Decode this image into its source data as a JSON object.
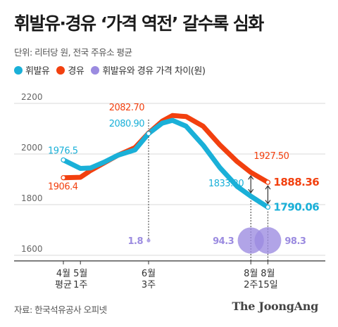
{
  "title": "휘발유·경유 ‘가격 역전’ 갈수록 심화",
  "unit_label": "단위: 리터당 원, 전국 주유소 평균",
  "source": "자료: 한국석유공사 오피넷",
  "brand": "The JoongAng",
  "colors": {
    "gasoline": "#1ab0d8",
    "diesel": "#f2400f",
    "gap": "#9b8be0"
  },
  "chart_data": {
    "type": "line",
    "title": "휘발유·경유 ‘가격 역전’ 갈수록 심화",
    "ylim": [
      1600,
      2200
    ],
    "y_ticks": [
      {
        "value": 2200,
        "label": "2200"
      },
      {
        "value": 2000,
        "label": "2000"
      },
      {
        "value": 1800,
        "label": "1800"
      },
      {
        "value": 1600,
        "label": "1600"
      }
    ],
    "x_ticks": [
      {
        "x": 0,
        "label": [
          "4월",
          "평균"
        ]
      },
      {
        "x": 1,
        "label": [
          "5월",
          "1주"
        ]
      },
      {
        "x": 5,
        "label": [
          "6월",
          "3주"
        ]
      },
      {
        "x": 11,
        "label": [
          "8월",
          "2주"
        ]
      },
      {
        "x": 12,
        "label": [
          "8월",
          "15일"
        ]
      }
    ],
    "legend": [
      "휘발유",
      "경유",
      "휘발유와 경유 가격 차이(원)"
    ],
    "legend_position": "top-left",
    "series": [
      {
        "name": "휘발유",
        "x": [
          0,
          1,
          1.6,
          2.4,
          3.2,
          4.2,
          5,
          5.8,
          6.4,
          7.2,
          8.2,
          9.2,
          10.2,
          11,
          12
        ],
        "values": [
          1976.5,
          1943,
          1945,
          1968,
          1995,
          2016,
          2080.9,
          2122,
          2133,
          2110,
          2035,
          1945,
          1872,
          1833.2,
          1790.06
        ]
      },
      {
        "name": "경유",
        "x": [
          0,
          1,
          1.6,
          2.4,
          3.2,
          4.2,
          5,
          5.8,
          6.4,
          7.2,
          8.2,
          9.2,
          10.2,
          11,
          12
        ],
        "values": [
          1906.4,
          1908,
          1935,
          1965,
          1995,
          2025,
          2082.7,
          2130,
          2152,
          2148,
          2110,
          2035,
          1970,
          1927.5,
          1888.36
        ]
      }
    ],
    "point_labels": [
      {
        "series": "휘발유",
        "x": 0,
        "text": "1976.5"
      },
      {
        "series": "경유",
        "x": 0,
        "text": "1906.4"
      },
      {
        "series": "경유",
        "x": 5,
        "text": "2082.70"
      },
      {
        "series": "휘발유",
        "x": 5,
        "text": "2080.90"
      },
      {
        "series": "경유",
        "x": 11,
        "text": "1927.50"
      },
      {
        "series": "휘발유",
        "x": 11,
        "text": "1833.20"
      },
      {
        "series": "경유",
        "x": 12,
        "text": "1888.36"
      },
      {
        "series": "휘발유",
        "x": 12,
        "text": "1790.06"
      }
    ],
    "gap_values": [
      {
        "x": 5,
        "value": 1.8,
        "label": "1.8"
      },
      {
        "x": 11,
        "value": 94.3,
        "label": "94.3"
      },
      {
        "x": 12,
        "value": 98.3,
        "label": "98.3"
      }
    ],
    "grid": true
  }
}
